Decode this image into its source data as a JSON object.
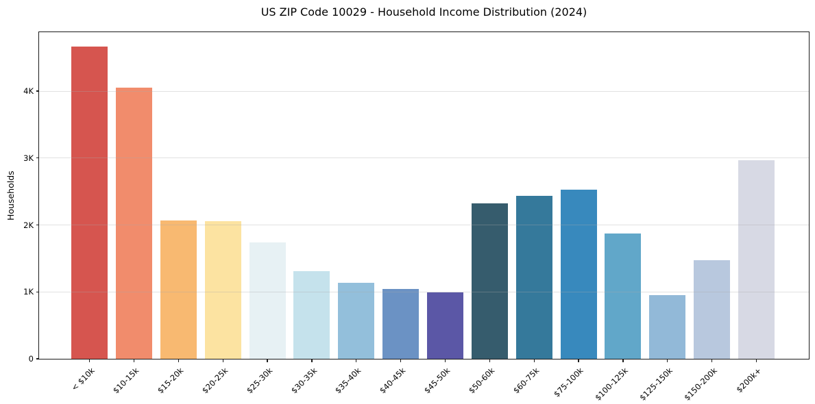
{
  "chart_data": {
    "type": "bar",
    "title": "US ZIP Code 10029 - Household Income Distribution (2024)",
    "xlabel": "",
    "ylabel": "Households",
    "categories": [
      "< $10k",
      "$10-15k",
      "$15-20k",
      "$20-25k",
      "$25-30k",
      "$30-35k",
      "$35-40k",
      "$40-45k",
      "$45-50k",
      "$50-60k",
      "$60-75k",
      "$75-100k",
      "$100-125k",
      "$125-150k",
      "$150-200k",
      "$200k+"
    ],
    "values": [
      4670,
      4050,
      2065,
      2055,
      1740,
      1310,
      1140,
      1040,
      995,
      2320,
      2440,
      2530,
      1870,
      950,
      1470,
      2970
    ],
    "bar_colors": [
      "#d6554f",
      "#f18c6c",
      "#f8b971",
      "#fce3a1",
      "#e7f1f4",
      "#c5e2ec",
      "#93bfdb",
      "#6b92c4",
      "#5b57a6",
      "#365c6d",
      "#35799b",
      "#3889bd",
      "#61a7c9",
      "#92b9d8",
      "#b8c8de",
      "#d7d9e4"
    ],
    "ylim": [
      0,
      4900
    ],
    "yticks": [
      {
        "value": 0,
        "label": "0"
      },
      {
        "value": 1000,
        "label": "1K"
      },
      {
        "value": 2000,
        "label": "2K"
      },
      {
        "value": 3000,
        "label": "3K"
      },
      {
        "value": 4000,
        "label": "4K"
      }
    ],
    "grid": "horizontal gridlines at yticks, light gray, drawn over bars",
    "legend": "none",
    "x_tick_rotation_deg": 45
  },
  "colors": {
    "background": "#ffffff",
    "spine": "#1a1a1a",
    "text": "#000000"
  }
}
